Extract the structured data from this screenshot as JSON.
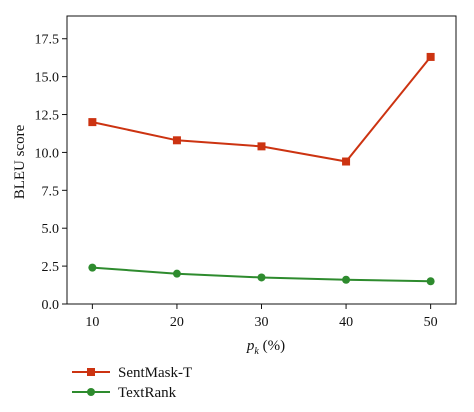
{
  "chart_data": {
    "type": "line",
    "x": [
      10,
      20,
      30,
      40,
      50
    ],
    "x_ticks": [
      "10",
      "20",
      "30",
      "40",
      "50"
    ],
    "y_ticks": [
      "0.0",
      "2.5",
      "5.0",
      "7.5",
      "10.0",
      "12.5",
      "15.0",
      "17.5"
    ],
    "xlim": [
      7,
      53
    ],
    "ylim": [
      0,
      19
    ],
    "ylabel": "BLEU score",
    "xlabel_base": "p",
    "xlabel_sub": "k",
    "xlabel_rest": " (%)",
    "grid": false,
    "legend_position": "bottom-left, below plot",
    "series": [
      {
        "name": "SentMask-T",
        "values": [
          12.0,
          10.8,
          10.4,
          9.4,
          16.3
        ],
        "color": "#cc3311",
        "marker": "square"
      },
      {
        "name": "TextRank",
        "values": [
          2.4,
          2.0,
          1.75,
          1.6,
          1.5
        ],
        "color": "#2e8b2e",
        "marker": "circle"
      }
    ]
  }
}
